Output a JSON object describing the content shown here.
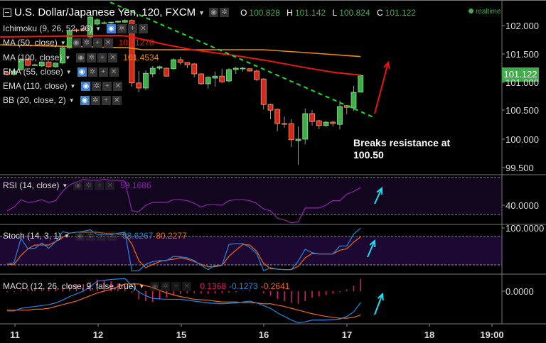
{
  "header": {
    "title": "U.S. Dollar/Japanese Yen, 120, FXCM",
    "ohlc": {
      "o_label": "O",
      "o": "100.828",
      "h_label": "H",
      "h": "101.142",
      "l_label": "L",
      "l": "100.824",
      "c_label": "C",
      "c": "101.122"
    },
    "status": "realtime"
  },
  "indicators": [
    {
      "label": "Ichimoku (9, 26, 52, 26)",
      "value": ""
    },
    {
      "label": "MA (50, close)",
      "value": "101.1278",
      "color": "#e8170f"
    },
    {
      "label": "MA (100, close)",
      "value": "101.4534",
      "color": "#f08c00"
    },
    {
      "label": "EMA (55, close)",
      "value": ""
    },
    {
      "label": "EMA (110, close)",
      "value": ""
    },
    {
      "label": "BB (20, close, 2)",
      "value": ""
    }
  ],
  "buttons": {
    "eye": "◉",
    "gear": "✲",
    "plus": "+",
    "close": "✕"
  },
  "price_axis": [
    "102.000",
    "101.500",
    "101.000",
    "100.500",
    "100.000",
    "99.500"
  ],
  "last_price": "101.122",
  "annotation": {
    "line1": "Breaks resistance at",
    "line2": "100.50"
  },
  "rsi": {
    "label": "RSI (14, close)",
    "value": "59.1686",
    "axis": "40.0000"
  },
  "stoch": {
    "label": "Stoch (14, 3, 1)",
    "k": "98.6267",
    "d": "80.2277",
    "axis": "100.0000"
  },
  "macd": {
    "label": "MACD (12, 26, close, 9, false, true)",
    "hist": "0.1368",
    "macd": "-0.1273",
    "signal": "-0.2641",
    "axis": "0.0000"
  },
  "time_axis": [
    "11",
    "12",
    "15",
    "16",
    "17",
    "18",
    "19:00"
  ],
  "colors": {
    "up": "#3fae4a",
    "down": "#d4281c",
    "ma50": "#e8170f",
    "ma100": "#f08c00",
    "trend": "#22dd22",
    "rsi": "#8e24aa",
    "k": "#1e88e5",
    "d": "#f06a10",
    "hist": "#e0176a",
    "cyan": "#18e0f0"
  },
  "chart_data": {
    "type": "candlestick",
    "title": "U.S. Dollar/Japanese Yen, 120, FXCM",
    "x_ticks": [
      {
        "label": "11",
        "index": 1.1
      },
      {
        "label": "12",
        "index": 13.1
      },
      {
        "label": "15",
        "index": 25.1
      },
      {
        "label": "16",
        "index": 37
      },
      {
        "label": "17",
        "index": 49
      },
      {
        "label": "18",
        "index": 61
      },
      {
        "label": "19:00",
        "index": 70
      }
    ],
    "ylim": [
      99.4,
      102.45
    ],
    "candles": [
      [
        101.175,
        101.2,
        101.12,
        101.14
      ],
      [
        101.14,
        101.22,
        101.12,
        101.2
      ],
      [
        101.225,
        101.43,
        101.2,
        101.41
      ],
      [
        101.41,
        101.43,
        101.28,
        101.3
      ],
      [
        101.31,
        101.33,
        101.29,
        101.31
      ],
      [
        101.29,
        101.37,
        101.27,
        101.36
      ],
      [
        101.36,
        101.37,
        101.26,
        101.275
      ],
      [
        101.275,
        101.35,
        101.26,
        101.34
      ],
      [
        101.34,
        101.63,
        101.32,
        101.61
      ],
      [
        101.61,
        101.93,
        101.59,
        101.91
      ],
      [
        101.925,
        101.95,
        101.89,
        101.91
      ],
      [
        101.95,
        101.97,
        101.9,
        101.925
      ],
      [
        101.8,
        102.17,
        101.78,
        102.15
      ],
      [
        102.025,
        102.13,
        102.0,
        102.1
      ],
      [
        102.05,
        102.08,
        102.03,
        102.05
      ],
      [
        102.05,
        102.07,
        102.03,
        102.06
      ],
      [
        102.06,
        102.09,
        102.05,
        102.075
      ],
      [
        102.06,
        102.11,
        102.05,
        102.09
      ],
      [
        102.09,
        102.11,
        100.925,
        100.99
      ],
      [
        100.99,
        101.2,
        100.825,
        100.9
      ],
      [
        100.9,
        101.21,
        100.86,
        101.16
      ],
      [
        101.15,
        101.29,
        101.09,
        101.25
      ],
      [
        101.25,
        101.29,
        101.22,
        101.275
      ],
      [
        101.25,
        101.26,
        101.1,
        101.11
      ],
      [
        101.24,
        101.42,
        101.22,
        101.4
      ],
      [
        101.4,
        101.45,
        101.31,
        101.35
      ],
      [
        101.35,
        101.36,
        101.25,
        101.31
      ],
      [
        101.325,
        101.34,
        101.09,
        101.15
      ],
      [
        101.15,
        101.16,
        100.96,
        100.975
      ],
      [
        100.975,
        101.11,
        100.89,
        101.09
      ],
      [
        101.075,
        101.19,
        100.925,
        101.11
      ],
      [
        101.11,
        101.24,
        100.99,
        101.01
      ],
      [
        101.025,
        101.25,
        101.0,
        101.225
      ],
      [
        101.225,
        101.275,
        101.15,
        101.25
      ],
      [
        101.25,
        101.275,
        101.19,
        101.25
      ],
      [
        101.24,
        101.25,
        101.19,
        101.2
      ],
      [
        101.2,
        101.225,
        101.025,
        101.05
      ],
      [
        101.06,
        101.075,
        100.525,
        100.61
      ],
      [
        100.61,
        100.625,
        100.35,
        100.51
      ],
      [
        100.525,
        100.54,
        100.14,
        100.275
      ],
      [
        100.275,
        100.4,
        100.2,
        100.27
      ],
      [
        100.275,
        100.35,
        99.86,
        99.99
      ],
      [
        99.975,
        100.225,
        99.55,
        100.0
      ],
      [
        100.0,
        100.54,
        99.91,
        100.45
      ],
      [
        100.45,
        100.51,
        100.24,
        100.31
      ],
      [
        100.325,
        100.34,
        100.175,
        100.24
      ],
      [
        100.24,
        100.32,
        100.22,
        100.3
      ],
      [
        100.3,
        100.325,
        100.225,
        100.275
      ],
      [
        100.26,
        100.675,
        100.175,
        100.575
      ],
      [
        100.59,
        100.6,
        100.44,
        100.56
      ],
      [
        100.55,
        100.94,
        100.5,
        100.825
      ],
      [
        100.828,
        101.142,
        100.824,
        101.122
      ]
    ],
    "ma50": [
      [
        -1,
        101.8
      ],
      [
        16.4,
        101.825
      ],
      [
        18,
        101.8
      ],
      [
        22.5,
        101.675
      ],
      [
        26.7,
        101.575
      ],
      [
        32.8,
        101.475
      ],
      [
        37.9,
        101.375
      ],
      [
        43,
        101.26
      ],
      [
        47.2,
        101.175
      ],
      [
        51,
        101.1278
      ]
    ],
    "ma100": [
      [
        -1,
        101.66
      ],
      [
        17.4,
        101.61
      ],
      [
        19.5,
        101.575
      ],
      [
        36.9,
        101.575
      ],
      [
        43,
        101.525
      ],
      [
        51,
        101.4534
      ]
    ],
    "trendline": [
      [
        14.9,
        102.41
      ],
      [
        52.8,
        100.39
      ]
    ],
    "rsi": {
      "ylim": [
        18,
        72
      ],
      "levels": [
        30,
        70
      ],
      "values": [
        34,
        38,
        46,
        43,
        44,
        46,
        43,
        45,
        55,
        62,
        65,
        68,
        67,
        67,
        68,
        67,
        67,
        66,
        34,
        33,
        40,
        43,
        43,
        43,
        46,
        46,
        45,
        42,
        38,
        41,
        41,
        40,
        45,
        46,
        46,
        45,
        42,
        36,
        34,
        26,
        24,
        21,
        22,
        37,
        37,
        37,
        40,
        45,
        45,
        52,
        55,
        59.17
      ]
    },
    "stoch": {
      "ylim": [
        0,
        100
      ],
      "levels": [
        20,
        80
      ],
      "k": [
        22,
        26,
        77,
        55,
        56,
        67,
        56,
        70,
        91,
        88,
        90,
        92,
        95,
        85,
        85,
        85,
        88,
        90,
        8,
        9,
        22,
        28,
        30,
        30,
        39,
        38,
        36,
        30,
        20,
        11,
        20,
        20,
        64,
        66,
        66,
        58,
        45,
        9,
        15,
        12,
        11,
        11,
        29,
        54,
        47,
        44,
        44,
        44,
        61,
        61,
        86,
        98.63
      ],
      "d": [
        22,
        22,
        41,
        55,
        63,
        63,
        63,
        70,
        79,
        88,
        90,
        90,
        90,
        90,
        88,
        87,
        86,
        85,
        65,
        30,
        15,
        22,
        28,
        31,
        33,
        36,
        33,
        28,
        22,
        17,
        17,
        20,
        39,
        52,
        64,
        63,
        50,
        24,
        13,
        12,
        11,
        11,
        18,
        36,
        45,
        44,
        44,
        44,
        52,
        55,
        69,
        80.23
      ]
    },
    "macd": {
      "zero": 0,
      "macd": [
        -0.22,
        -0.22,
        -0.19,
        -0.18,
        -0.17,
        -0.16,
        -0.15,
        -0.13,
        -0.1,
        -0.06,
        -0.03,
        0,
        0.05,
        0.11,
        0.12,
        0.13,
        0.135,
        0.14,
        0.06,
        -0.01,
        -0.05,
        -0.08,
        -0.085,
        -0.09,
        -0.09,
        -0.09,
        -0.1,
        -0.11,
        -0.12,
        -0.13,
        -0.135,
        -0.14,
        -0.135,
        -0.13,
        -0.12,
        -0.11,
        -0.13,
        -0.16,
        -0.19,
        -0.24,
        -0.28,
        -0.32,
        -0.35,
        -0.34,
        -0.32,
        -0.32,
        -0.32,
        -0.315,
        -0.31,
        -0.28,
        -0.23,
        -0.1273
      ],
      "signal": [
        -0.21,
        -0.21,
        -0.21,
        -0.21,
        -0.2,
        -0.2,
        -0.19,
        -0.17,
        -0.15,
        -0.13,
        -0.11,
        -0.08,
        -0.05,
        -0.02,
        0,
        0.02,
        0.05,
        0.08,
        0.08,
        0.08,
        0.06,
        0.04,
        0.01,
        -0.02,
        -0.04,
        -0.06,
        -0.075,
        -0.09,
        -0.095,
        -0.1,
        -0.11,
        -0.12,
        -0.12,
        -0.12,
        -0.125,
        -0.125,
        -0.13,
        -0.14,
        -0.14,
        -0.155,
        -0.17,
        -0.19,
        -0.21,
        -0.23,
        -0.25,
        -0.265,
        -0.28,
        -0.29,
        -0.3,
        -0.3,
        -0.29,
        -0.2641
      ]
    }
  }
}
